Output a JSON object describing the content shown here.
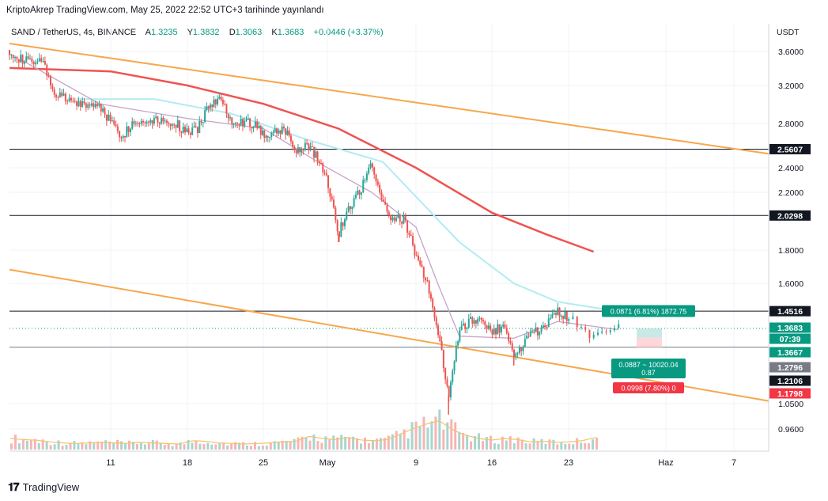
{
  "header": {
    "published": "KriptoAkrep TradingView.com, May 25, 2022 22:52 UTC+3 tarihinde yayınlandı",
    "symbol": "SAND / TetherUS, 4s, BINANCE",
    "o_label": "A",
    "o": "1.3235",
    "h_label": "Y",
    "h": "1.3832",
    "l_label": "D",
    "l": "1.3063",
    "c_label": "K",
    "c": "1.3683",
    "change": "+0.0446 (+3.37%)"
  },
  "chart_data": {
    "type": "candlestick",
    "symbol": "SAND / TetherUS",
    "interval": "4s",
    "exchange": "BINANCE",
    "currency": "USDT",
    "y_scale": "log",
    "ylim": [
      0.9,
      3.85
    ],
    "y_ticks": [
      "3.6000",
      "3.2000",
      "2.8000",
      "2.4000",
      "2.2000",
      "1.8000",
      "1.6000",
      "1.0500",
      "0.9600"
    ],
    "x_ticks": [
      "11",
      "18",
      "25",
      "May",
      "9",
      "16",
      "23",
      "Haz",
      "7"
    ],
    "candle_anchors": [
      [
        "04-02",
        3.62
      ],
      [
        "04-03",
        3.5
      ],
      [
        "04-05",
        3.45
      ],
      [
        "04-06",
        3.1
      ],
      [
        "04-08",
        3.0
      ],
      [
        "04-10",
        2.98
      ],
      [
        "04-11",
        2.82
      ],
      [
        "04-12",
        2.68
      ],
      [
        "04-13",
        2.8
      ],
      [
        "04-15",
        2.85
      ],
      [
        "04-17",
        2.8
      ],
      [
        "04-18",
        2.7
      ],
      [
        "04-19",
        2.75
      ],
      [
        "04-20",
        3.0
      ],
      [
        "04-21",
        3.05
      ],
      [
        "04-22",
        2.85
      ],
      [
        "04-24",
        2.8
      ],
      [
        "04-25",
        2.7
      ],
      [
        "04-27",
        2.75
      ],
      [
        "04-28",
        2.55
      ],
      [
        "04-29",
        2.6
      ],
      [
        "04-30",
        2.5
      ],
      [
        "05-01",
        2.3
      ],
      [
        "05-02",
        1.9
      ],
      [
        "05-03",
        2.1
      ],
      [
        "05-04",
        2.22
      ],
      [
        "05-05",
        2.45
      ],
      [
        "05-06",
        2.1
      ],
      [
        "05-07",
        2.0
      ],
      [
        "05-08",
        2.0
      ],
      [
        "05-09",
        1.75
      ],
      [
        "05-10",
        1.62
      ],
      [
        "05-11",
        1.35
      ],
      [
        "05-12",
        1.08
      ],
      [
        "05-13",
        1.35
      ],
      [
        "05-14",
        1.4
      ],
      [
        "05-15",
        1.42
      ],
      [
        "05-16",
        1.35
      ],
      [
        "05-17",
        1.38
      ],
      [
        "05-18",
        1.25
      ],
      [
        "05-19",
        1.3
      ],
      [
        "05-20",
        1.35
      ],
      [
        "05-21",
        1.38
      ],
      [
        "05-22",
        1.45
      ],
      [
        "05-23",
        1.42
      ],
      [
        "05-24",
        1.33
      ],
      [
        "05-25",
        1.37
      ]
    ],
    "lows": {
      "05-12": 1.01,
      "05-18": 1.2,
      "05-02": 1.85
    },
    "ma_200": [
      [
        "04-02",
        3.4
      ],
      [
        "04-11",
        3.36
      ],
      [
        "04-18",
        3.2
      ],
      [
        "04-25",
        3.0
      ],
      [
        "05-02",
        2.75
      ],
      [
        "05-09",
        2.4
      ],
      [
        "05-16",
        2.05
      ],
      [
        "05-21",
        1.9
      ],
      [
        "05-24",
        1.79
      ]
    ],
    "ma_100": [
      [
        "04-08",
        3.05
      ],
      [
        "04-15",
        3.05
      ],
      [
        "04-22",
        2.9
      ],
      [
        "04-29",
        2.65
      ],
      [
        "05-06",
        2.45
      ],
      [
        "05-13",
        1.85
      ],
      [
        "05-18",
        1.6
      ],
      [
        "05-22",
        1.5
      ],
      [
        "05-25",
        1.45
      ]
    ],
    "ma_short": [
      [
        "04-03",
        3.5
      ],
      [
        "04-10",
        3.0
      ],
      [
        "04-18",
        2.85
      ],
      [
        "04-25",
        2.75
      ],
      [
        "05-01",
        2.4
      ],
      [
        "05-05",
        2.2
      ],
      [
        "05-09",
        1.95
      ],
      [
        "05-11",
        1.6
      ],
      [
        "05-13",
        1.33
      ],
      [
        "05-18",
        1.32
      ],
      [
        "05-22",
        1.4
      ],
      [
        "05-25",
        1.36
      ]
    ],
    "channel_upper": [
      [
        "04-02",
        3.7
      ],
      [
        "05-31",
        2.52
      ]
    ],
    "channel_lower": [
      [
        "04-02",
        1.68
      ],
      [
        "05-31",
        1.06
      ]
    ],
    "horizontal_levels": [
      {
        "value": 2.5607,
        "label": "2.5607"
      },
      {
        "value": 2.0298,
        "label": "2.0298"
      },
      {
        "value": 1.4516,
        "label": "1.4516"
      },
      {
        "value": 1.2796,
        "label": "1.2796"
      }
    ],
    "price_labels": [
      {
        "text": "1.3683",
        "value": 1.3683,
        "color": "#089981"
      },
      {
        "text": "07:39",
        "value": 1.3683,
        "color": "#089981"
      },
      {
        "text": "1.3667",
        "value": 1.3667,
        "color": "#089981"
      },
      {
        "text": "1.2796",
        "value": 1.2796,
        "color": "#787b86"
      },
      {
        "text": "1.2106",
        "value": 1.2106,
        "color": "#131722"
      },
      {
        "text": "1.1798",
        "value": 1.1798,
        "color": "#f23645"
      }
    ],
    "position_tool": {
      "entry": 1.2796,
      "target": 1.3667,
      "stop": 1.1798,
      "target_label": "0.0871 (6.81%) 1872.75",
      "entry_label_1": "0.0887 ~ 10020.04",
      "entry_label_2": "0.87",
      "stop_label": "0.0998 (7.80%) 0"
    },
    "volume_rel": [
      1,
      0.9,
      0.85,
      0.7,
      0.6,
      0.55,
      0.6,
      0.65,
      0.6,
      0.55,
      0.65,
      0.6,
      0.55,
      0.5,
      0.8,
      0.75,
      0.6,
      0.55,
      0.5,
      0.55,
      0.6,
      0.7,
      0.75,
      1.2,
      1.0,
      0.9,
      1.1,
      0.85,
      0.8,
      0.9,
      1.4,
      1.9,
      2.3,
      2.6,
      1.8,
      1.3,
      1.0,
      0.85,
      1.0,
      0.9,
      0.7,
      0.75,
      0.65,
      0.7,
      0.8,
      1.1
    ]
  },
  "colors": {
    "up": "#26a69a",
    "down": "#ef5350",
    "ma200": "#ef5350",
    "ma100": "#b2ebf2",
    "channel": "#f7a74d",
    "ma_short": "#c8a2c8",
    "level": "#131722"
  },
  "footer": {
    "brand": "TradingView"
  }
}
